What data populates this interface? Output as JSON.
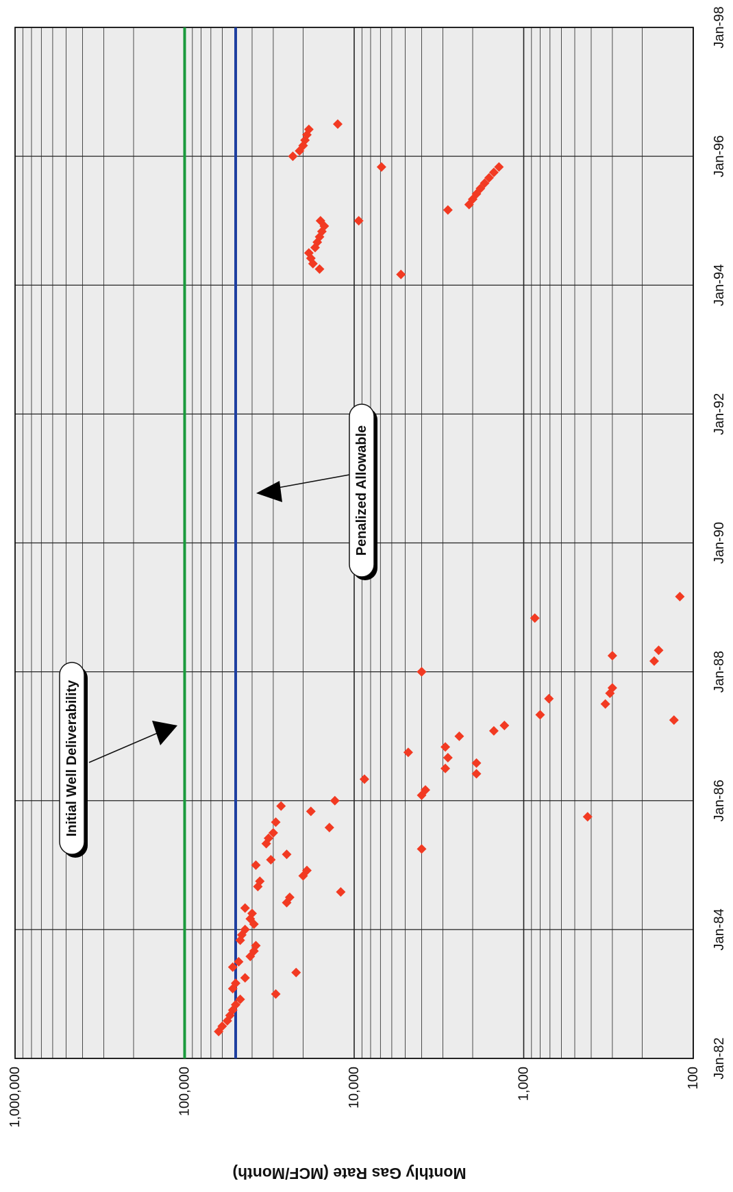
{
  "chart_data": {
    "type": "scatter",
    "orientation": "rotated 90 degrees clockwise",
    "title": "",
    "xlabel": "",
    "ylabel": "Monthly Gas Rate (MCF/Month)",
    "y_scale": "log",
    "ylim": [
      100,
      1000000
    ],
    "y_ticks": [
      {
        "value": 100,
        "label": "100"
      },
      {
        "value": 1000,
        "label": "1,000"
      },
      {
        "value": 10000,
        "label": "10,000"
      },
      {
        "value": 100000,
        "label": "100,000"
      },
      {
        "value": 1000000,
        "label": "1,000,000"
      }
    ],
    "xlim": [
      "1982-01",
      "1998-01"
    ],
    "x_ticks": [
      {
        "value": "1982-01",
        "label": "Jan-82"
      },
      {
        "value": "1984-01",
        "label": "Jan-84"
      },
      {
        "value": "1986-01",
        "label": "Jan-86"
      },
      {
        "value": "1988-01",
        "label": "Jan-88"
      },
      {
        "value": "1990-01",
        "label": "Jan-90"
      },
      {
        "value": "1992-01",
        "label": "Jan-92"
      },
      {
        "value": "1994-01",
        "label": "Jan-94"
      },
      {
        "value": "1996-01",
        "label": "Jan-96"
      },
      {
        "value": "1998-01",
        "label": "Jan-98"
      }
    ],
    "grid": true,
    "colors": {
      "points": "#f23a22",
      "initial_line": "#1a9a3c",
      "allowable_line": "#1e3fa0",
      "grid": "#222222"
    },
    "reference_lines": [
      {
        "name": "Initial Well Deliverability",
        "value": 100000,
        "color": "#1a9a3c"
      },
      {
        "name": "Penalized Allowable",
        "value": 50000,
        "color": "#1e3fa0"
      }
    ],
    "annotations": [
      {
        "text": "Initial Well Deliverability",
        "points_to": "Initial Well Deliverability line"
      },
      {
        "text": "Penalized Allowable",
        "points_to": "Penalized Allowable line"
      }
    ],
    "series": [
      {
        "marker": "diamond",
        "color": "#f23a22",
        "points": [
          {
            "x": "1982-06",
            "y": 63000
          },
          {
            "x": "1982-07",
            "y": 60000
          },
          {
            "x": "1982-08",
            "y": 56000
          },
          {
            "x": "1982-09",
            "y": 54000
          },
          {
            "x": "1982-10",
            "y": 52000
          },
          {
            "x": "1982-11",
            "y": 50000
          },
          {
            "x": "1982-12",
            "y": 47000
          },
          {
            "x": "1983-01",
            "y": 29000
          },
          {
            "x": "1983-02",
            "y": 52000
          },
          {
            "x": "1983-03",
            "y": 50000
          },
          {
            "x": "1983-04",
            "y": 44000
          },
          {
            "x": "1983-05",
            "y": 22000
          },
          {
            "x": "1983-06",
            "y": 52000
          },
          {
            "x": "1983-07",
            "y": 48000
          },
          {
            "x": "1983-08",
            "y": 41000
          },
          {
            "x": "1983-09",
            "y": 39000
          },
          {
            "x": "1983-10",
            "y": 38000
          },
          {
            "x": "1983-11",
            "y": 47000
          },
          {
            "x": "1983-12",
            "y": 46000
          },
          {
            "x": "1984-01",
            "y": 44000
          },
          {
            "x": "1984-02",
            "y": 39000
          },
          {
            "x": "1984-03",
            "y": 41000
          },
          {
            "x": "1984-04",
            "y": 40000
          },
          {
            "x": "1984-05",
            "y": 44000
          },
          {
            "x": "1984-06",
            "y": 25000
          },
          {
            "x": "1984-07",
            "y": 24000
          },
          {
            "x": "1984-08",
            "y": 12000
          },
          {
            "x": "1984-09",
            "y": 37000
          },
          {
            "x": "1984-10",
            "y": 36000
          },
          {
            "x": "1984-11",
            "y": 20000
          },
          {
            "x": "1984-12",
            "y": 19000
          },
          {
            "x": "1985-01",
            "y": 38000
          },
          {
            "x": "1985-02",
            "y": 31000
          },
          {
            "x": "1985-03",
            "y": 25000
          },
          {
            "x": "1985-04",
            "y": 4000
          },
          {
            "x": "1985-05",
            "y": 33000
          },
          {
            "x": "1985-06",
            "y": 32000
          },
          {
            "x": "1985-07",
            "y": 30000
          },
          {
            "x": "1985-08",
            "y": 14000
          },
          {
            "x": "1985-09",
            "y": 29000
          },
          {
            "x": "1985-10",
            "y": 420
          },
          {
            "x": "1985-11",
            "y": 18000
          },
          {
            "x": "1985-12",
            "y": 27000
          },
          {
            "x": "1986-01",
            "y": 13000
          },
          {
            "x": "1986-02",
            "y": 4000
          },
          {
            "x": "1986-03",
            "y": 3800
          },
          {
            "x": "1986-05",
            "y": 8700
          },
          {
            "x": "1986-06",
            "y": 1900
          },
          {
            "x": "1986-07",
            "y": 2900
          },
          {
            "x": "1986-08",
            "y": 1900
          },
          {
            "x": "1986-09",
            "y": 2800
          },
          {
            "x": "1986-10",
            "y": 4800
          },
          {
            "x": "1986-11",
            "y": 2900
          },
          {
            "x": "1987-01",
            "y": 2400
          },
          {
            "x": "1987-02",
            "y": 1500
          },
          {
            "x": "1987-03",
            "y": 1300
          },
          {
            "x": "1987-04",
            "y": 130
          },
          {
            "x": "1987-05",
            "y": 800
          },
          {
            "x": "1987-07",
            "y": 330
          },
          {
            "x": "1987-08",
            "y": 710
          },
          {
            "x": "1987-09",
            "y": 310
          },
          {
            "x": "1987-10",
            "y": 300
          },
          {
            "x": "1988-01",
            "y": 4000
          },
          {
            "x": "1988-01",
            "y": 4000
          },
          {
            "x": "1988-03",
            "y": 170
          },
          {
            "x": "1988-04",
            "y": 300
          },
          {
            "x": "1988-05",
            "y": 160
          },
          {
            "x": "1988-11",
            "y": 860
          },
          {
            "x": "1989-03",
            "y": 120
          },
          {
            "x": "1994-03",
            "y": 5300
          },
          {
            "x": "1994-04",
            "y": 16000
          },
          {
            "x": "1994-05",
            "y": 17500
          },
          {
            "x": "1994-06",
            "y": 18000
          },
          {
            "x": "1994-07",
            "y": 18500
          },
          {
            "x": "1994-08",
            "y": 17000
          },
          {
            "x": "1994-09",
            "y": 16500
          },
          {
            "x": "1994-10",
            "y": 16000
          },
          {
            "x": "1994-11",
            "y": 15500
          },
          {
            "x": "1994-12",
            "y": 15000
          },
          {
            "x": "1995-01",
            "y": 15800
          },
          {
            "x": "1995-01",
            "y": 9400
          },
          {
            "x": "1995-03",
            "y": 2800
          },
          {
            "x": "1995-04",
            "y": 2100
          },
          {
            "x": "1995-05",
            "y": 2000
          },
          {
            "x": "1995-06",
            "y": 1900
          },
          {
            "x": "1995-07",
            "y": 1800
          },
          {
            "x": "1995-08",
            "y": 1700
          },
          {
            "x": "1995-09",
            "y": 1600
          },
          {
            "x": "1995-10",
            "y": 1500
          },
          {
            "x": "1995-11",
            "y": 1400
          },
          {
            "x": "1995-11",
            "y": 6900
          },
          {
            "x": "1996-01",
            "y": 23000
          },
          {
            "x": "1996-02",
            "y": 21000
          },
          {
            "x": "1996-03",
            "y": 20000
          },
          {
            "x": "1996-04",
            "y": 19500
          },
          {
            "x": "1996-05",
            "y": 19000
          },
          {
            "x": "1996-06",
            "y": 18500
          },
          {
            "x": "1996-07",
            "y": 12500
          }
        ]
      }
    ]
  }
}
